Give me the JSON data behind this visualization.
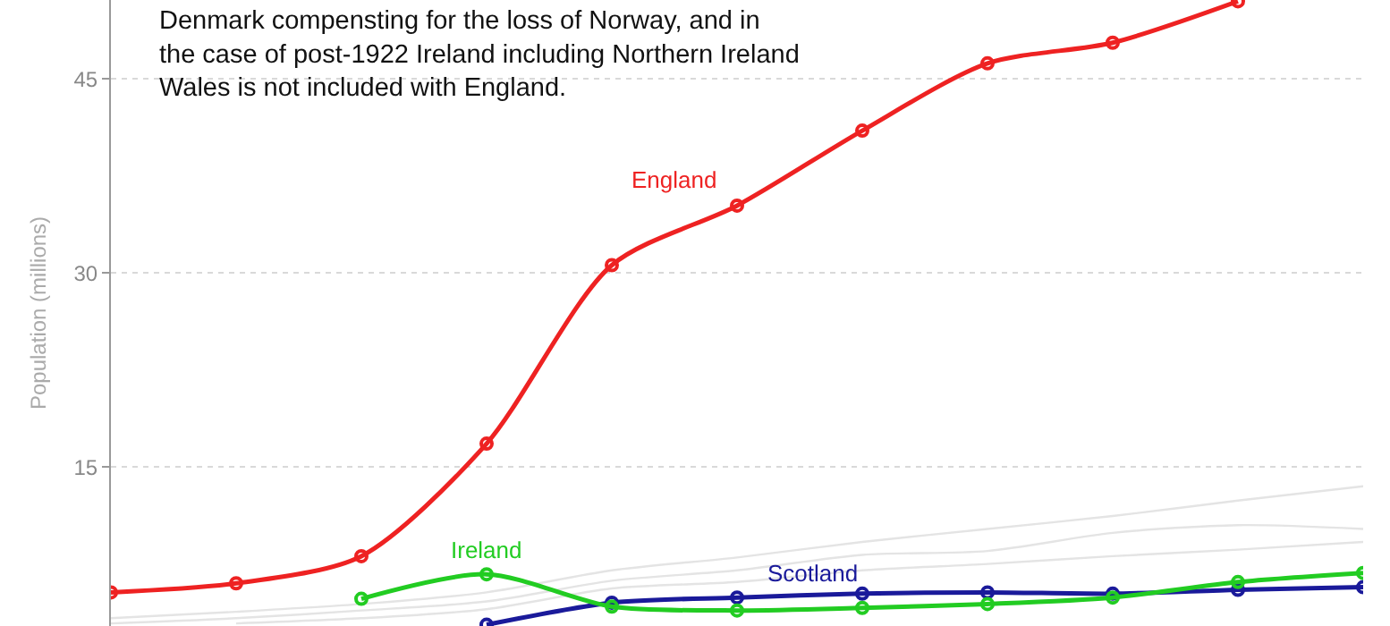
{
  "chart_data": {
    "type": "line",
    "ylabel": "Population (millions)",
    "annotations": [
      "Denmark compensting for the loss of Norway, and in\nthe case of post-1922 Ireland including Northern Ireland\nWales is not included with England."
    ],
    "categories": [
      null,
      null,
      null,
      null,
      null,
      null,
      null,
      null,
      null,
      null,
      null
    ],
    "ylim": [
      2.7,
      51.1
    ],
    "yticks": [
      15,
      30,
      45
    ],
    "grid": true,
    "legend": false,
    "marker": "circle",
    "series": [
      {
        "color": "#e4e4e4",
        "marker": "none",
        "values": [
          3.3,
          3.8,
          4.4,
          5.3,
          7.0,
          8.0,
          9.2,
          10.2,
          11.2,
          12.4,
          13.5
        ]
      },
      {
        "color": "#e4e4e4",
        "marker": "none",
        "values": [
          2.9,
          3.3,
          3.9,
          4.6,
          6.2,
          7.0,
          8.2,
          8.5,
          9.9,
          10.5,
          10.2
        ]
      },
      {
        "color": "#e4e4e4",
        "marker": "none",
        "values": [
          null,
          2.9,
          3.3,
          4.0,
          5.6,
          6.1,
          7.0,
          7.5,
          8.1,
          8.6,
          9.2
        ]
      },
      {
        "name": "England",
        "color": "#ee2222",
        "values": [
          5.3,
          6.0,
          8.1,
          16.8,
          30.6,
          35.2,
          41.0,
          46.2,
          47.8,
          51.0,
          null
        ]
      },
      {
        "name": "Scotland",
        "color": "#1a1a9a",
        "values": [
          null,
          null,
          null,
          2.8,
          4.5,
          4.9,
          5.2,
          5.3,
          5.2,
          5.5,
          5.7
        ]
      },
      {
        "name": "Ireland",
        "color": "#22cc22",
        "values": [
          null,
          null,
          4.8,
          6.7,
          4.2,
          3.9,
          4.1,
          4.4,
          4.9,
          6.1,
          6.8
        ]
      }
    ]
  }
}
